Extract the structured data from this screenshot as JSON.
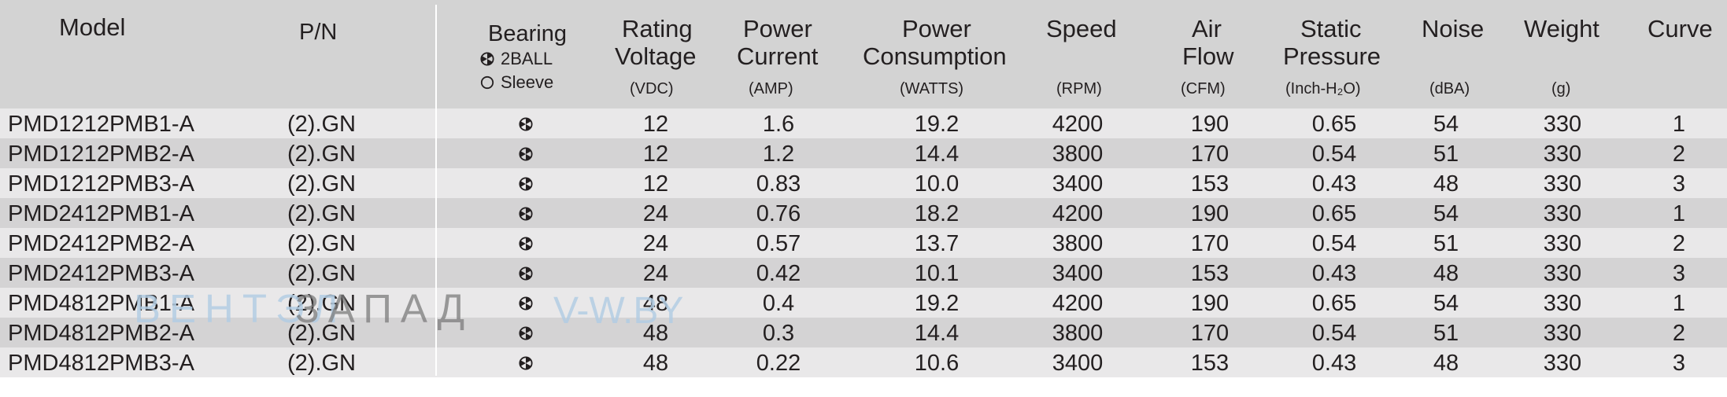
{
  "headers": {
    "model": "Model",
    "pn": "P/N",
    "bearing_title": "Bearing",
    "bearing_ball": "2BALL",
    "bearing_sleeve": "Sleeve",
    "rating_1": "Rating",
    "rating_2": "Voltage",
    "rating_unit": "(VDC)",
    "current_1": "Power",
    "current_2": "Current",
    "current_unit": "(AMP)",
    "consumption_1": "Power",
    "consumption_2": "Consumption",
    "consumption_unit": "(WATTS)",
    "speed": "Speed",
    "speed_unit": "(RPM)",
    "airflow_1": "Air",
    "airflow_2": "Flow",
    "airflow_unit": "(CFM)",
    "pressure_1": "Static",
    "pressure_2": "Pressure",
    "pressure_unit": "(Inch-H₂O)",
    "noise": "Noise",
    "noise_unit": "(dBA)",
    "weight": "Weight",
    "weight_unit": "(g)",
    "curve": "Curve"
  },
  "rows": [
    {
      "model": "PMD1212PMB1-A",
      "pn": "(2).GN",
      "voltage": "12",
      "current": "1.6",
      "power": "19.2",
      "speed": "4200",
      "airflow": "190",
      "pressure": "0.65",
      "noise": "54",
      "weight": "330",
      "curve": "1"
    },
    {
      "model": "PMD1212PMB2-A",
      "pn": "(2).GN",
      "voltage": "12",
      "current": "1.2",
      "power": "14.4",
      "speed": "3800",
      "airflow": "170",
      "pressure": "0.54",
      "noise": "51",
      "weight": "330",
      "curve": "2"
    },
    {
      "model": "PMD1212PMB3-A",
      "pn": "(2).GN",
      "voltage": "12",
      "current": "0.83",
      "power": "10.0",
      "speed": "3400",
      "airflow": "153",
      "pressure": "0.43",
      "noise": "48",
      "weight": "330",
      "curve": "3"
    },
    {
      "model": "PMD2412PMB1-A",
      "pn": "(2).GN",
      "voltage": "24",
      "current": "0.76",
      "power": "18.2",
      "speed": "4200",
      "airflow": "190",
      "pressure": "0.65",
      "noise": "54",
      "weight": "330",
      "curve": "1"
    },
    {
      "model": "PMD2412PMB2-A",
      "pn": "(2).GN",
      "voltage": "24",
      "current": "0.57",
      "power": "13.7",
      "speed": "3800",
      "airflow": "170",
      "pressure": "0.54",
      "noise": "51",
      "weight": "330",
      "curve": "2"
    },
    {
      "model": "PMD2412PMB3-A",
      "pn": "(2).GN",
      "voltage": "24",
      "current": "0.42",
      "power": "10.1",
      "speed": "3400",
      "airflow": "153",
      "pressure": "0.43",
      "noise": "48",
      "weight": "330",
      "curve": "3"
    },
    {
      "model": "PMD4812PMB1-A",
      "pn": "(2).GN",
      "voltage": "48",
      "current": "0.4",
      "power": "19.2",
      "speed": "4200",
      "airflow": "190",
      "pressure": "0.65",
      "noise": "54",
      "weight": "330",
      "curve": "1"
    },
    {
      "model": "PMD4812PMB2-A",
      "pn": "(2).GN",
      "voltage": "48",
      "current": "0.3",
      "power": "14.4",
      "speed": "3800",
      "airflow": "170",
      "pressure": "0.54",
      "noise": "51",
      "weight": "330",
      "curve": "2"
    },
    {
      "model": "PMD4812PMB3-A",
      "pn": "(2).GN",
      "voltage": "48",
      "current": "0.22",
      "power": "10.6",
      "speed": "3400",
      "airflow": "153",
      "pressure": "0.43",
      "noise": "48",
      "weight": "330",
      "curve": "3"
    }
  ],
  "watermark": {
    "part1": "ВЕНТЭЛ",
    "part2": "ЗАПАД",
    "site": "V-W.BY"
  },
  "colors": {
    "header_bg": "#d3d3d3",
    "row_light": "#e9e8e9",
    "row_dark": "#d4d3d4",
    "text": "#231f20",
    "watermark_blue": "#b3cde4"
  }
}
